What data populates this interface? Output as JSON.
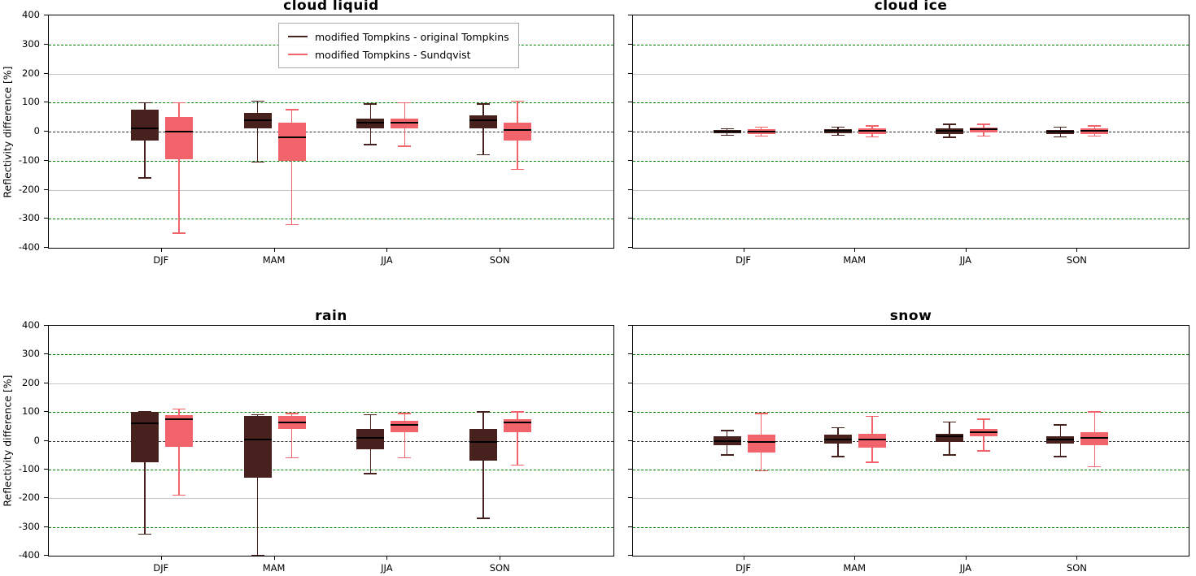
{
  "chart_data": {
    "type": "boxplot",
    "ylabel": "Reflectivity difference [%]",
    "ylim": [
      -400,
      400
    ],
    "yticks": [
      400,
      300,
      200,
      100,
      0,
      -100,
      -200,
      -300,
      -400
    ],
    "categories": [
      "DJF",
      "MAM",
      "JJA",
      "SON"
    ],
    "legend": [
      "modified Tompkins - original Tompkins",
      "modified Tompkins - Sundqvist"
    ],
    "legend_position": "upper right of first panel",
    "grid": "horizontal dashed green at ±100 and ±300, light gray at ±200, dashed dark at 0",
    "colors": {
      "series1": "#47211d",
      "series2": "#f2646c",
      "grid_green": "#008000",
      "grid_gray": "#c6c6c6",
      "zero_line": "#333333",
      "median": "#000000"
    },
    "gridlines": {
      "green": [
        300,
        100,
        -100,
        -300
      ],
      "gray": [
        200,
        -200
      ],
      "zero": 0
    },
    "panels": [
      {
        "title": "cloud liquid",
        "series": [
          {
            "name": "modified Tompkins - original Tompkins",
            "color_key": "series1",
            "boxes": [
              {
                "whislo": -160,
                "q1": -30,
                "med": 10,
                "q3": 75,
                "whishi": 100
              },
              {
                "whislo": -105,
                "q1": 10,
                "med": 40,
                "q3": 65,
                "whishi": 105
              },
              {
                "whislo": -45,
                "q1": 10,
                "med": 30,
                "q3": 45,
                "whishi": 95
              },
              {
                "whislo": -80,
                "q1": 10,
                "med": 40,
                "q3": 55,
                "whishi": 95
              }
            ]
          },
          {
            "name": "modified Tompkins - Sundqvist",
            "color_key": "series2",
            "boxes": [
              {
                "whislo": -350,
                "q1": -95,
                "med": 0,
                "q3": 50,
                "whishi": 100
              },
              {
                "whislo": -320,
                "q1": -100,
                "med": -20,
                "q3": 30,
                "whishi": 75
              },
              {
                "whislo": -50,
                "q1": 10,
                "med": 30,
                "q3": 45,
                "whishi": 100
              },
              {
                "whislo": -130,
                "q1": -30,
                "med": 5,
                "q3": 30,
                "whishi": 105
              }
            ]
          }
        ]
      },
      {
        "title": "cloud ice",
        "series": [
          {
            "name": "modified Tompkins - original Tompkins",
            "color_key": "series1",
            "boxes": [
              {
                "whislo": -12,
                "q1": -5,
                "med": 0,
                "q3": 5,
                "whishi": 10
              },
              {
                "whislo": -12,
                "q1": -5,
                "med": 2,
                "q3": 8,
                "whishi": 15
              },
              {
                "whislo": -20,
                "q1": -8,
                "med": 2,
                "q3": 10,
                "whishi": 25
              },
              {
                "whislo": -18,
                "q1": -8,
                "med": 0,
                "q3": 6,
                "whishi": 15
              }
            ]
          },
          {
            "name": "modified Tompkins - Sundqvist",
            "color_key": "series2",
            "boxes": [
              {
                "whislo": -15,
                "q1": -8,
                "med": 0,
                "q3": 8,
                "whishi": 15
              },
              {
                "whislo": -18,
                "q1": -8,
                "med": 2,
                "q3": 10,
                "whishi": 20
              },
              {
                "whislo": -15,
                "q1": -2,
                "med": 8,
                "q3": 15,
                "whishi": 25
              },
              {
                "whislo": -15,
                "q1": -8,
                "med": 2,
                "q3": 10,
                "whishi": 20
              }
            ]
          }
        ]
      },
      {
        "title": "rain",
        "series": [
          {
            "name": "modified Tompkins - original Tompkins",
            "color_key": "series1",
            "boxes": [
              {
                "whislo": -325,
                "q1": -75,
                "med": 60,
                "q3": 100,
                "whishi": 100
              },
              {
                "whislo": -400,
                "q1": -130,
                "med": 5,
                "q3": 85,
                "whishi": 90
              },
              {
                "whislo": -115,
                "q1": -30,
                "med": 10,
                "q3": 40,
                "whishi": 90
              },
              {
                "whislo": -270,
                "q1": -70,
                "med": -5,
                "q3": 40,
                "whishi": 100
              }
            ]
          },
          {
            "name": "modified Tompkins - Sundqvist",
            "color_key": "series2",
            "boxes": [
              {
                "whislo": -190,
                "q1": -20,
                "med": 75,
                "q3": 90,
                "whishi": 110
              },
              {
                "whislo": -60,
                "q1": 40,
                "med": 65,
                "q3": 85,
                "whishi": 95
              },
              {
                "whislo": -60,
                "q1": 30,
                "med": 55,
                "q3": 70,
                "whishi": 95
              },
              {
                "whislo": -85,
                "q1": 30,
                "med": 65,
                "q3": 75,
                "whishi": 100
              }
            ]
          }
        ]
      },
      {
        "title": "snow",
        "series": [
          {
            "name": "modified Tompkins - original Tompkins",
            "color_key": "series1",
            "boxes": [
              {
                "whislo": -50,
                "q1": -15,
                "med": 0,
                "q3": 15,
                "whishi": 35
              },
              {
                "whislo": -55,
                "q1": -10,
                "med": 5,
                "q3": 20,
                "whishi": 45
              },
              {
                "whislo": -50,
                "q1": -5,
                "med": 15,
                "q3": 25,
                "whishi": 65
              },
              {
                "whislo": -55,
                "q1": -10,
                "med": 5,
                "q3": 15,
                "whishi": 55
              }
            ]
          },
          {
            "name": "modified Tompkins - Sundqvist",
            "color_key": "series2",
            "boxes": [
              {
                "whislo": -105,
                "q1": -40,
                "med": -5,
                "q3": 20,
                "whishi": 95
              },
              {
                "whislo": -75,
                "q1": -25,
                "med": 5,
                "q3": 25,
                "whishi": 85
              },
              {
                "whislo": -35,
                "q1": 15,
                "med": 30,
                "q3": 40,
                "whishi": 75
              },
              {
                "whislo": -90,
                "q1": -15,
                "med": 10,
                "q3": 30,
                "whishi": 100
              }
            ]
          }
        ]
      }
    ]
  }
}
